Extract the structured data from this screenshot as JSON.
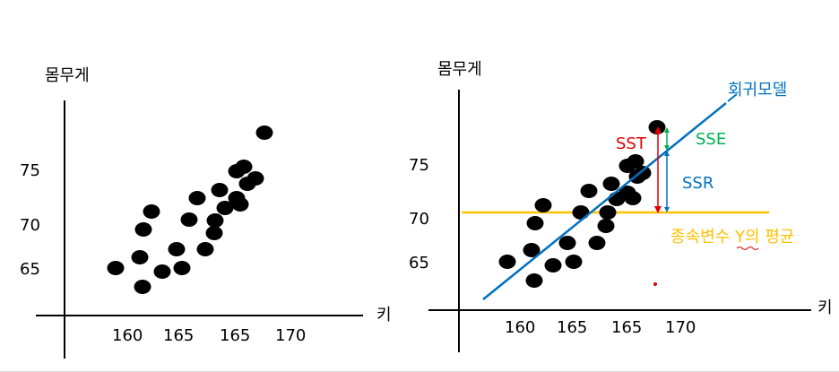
{
  "left_plot": {
    "y_axis_label": "몸무게",
    "x_axis_label": "키",
    "y_ticks": [
      "75",
      "70",
      "65"
    ],
    "x_ticks": [
      "160",
      "165",
      "165",
      "170"
    ],
    "point_count": 24
  },
  "right_plot": {
    "y_axis_label": "몸무게",
    "x_axis_label": "키",
    "y_ticks": [
      "75",
      "70",
      "65"
    ],
    "x_ticks": [
      "160",
      "165",
      "165",
      "170"
    ],
    "point_count": 24,
    "regression_label": "회귀모델",
    "mean_label": "종속변수 Y의 평균",
    "sst_label": "SST",
    "sse_label": "SSE",
    "ssr_label": "SSR"
  },
  "colors": {
    "points": "#000000",
    "axes": "#000000",
    "regression_line": "#0070c0",
    "mean_line": "#ffc000",
    "sst_arrow": "#e00000",
    "sse_arrow": "#00b050",
    "ssr_arrow": "#0070c0"
  }
}
